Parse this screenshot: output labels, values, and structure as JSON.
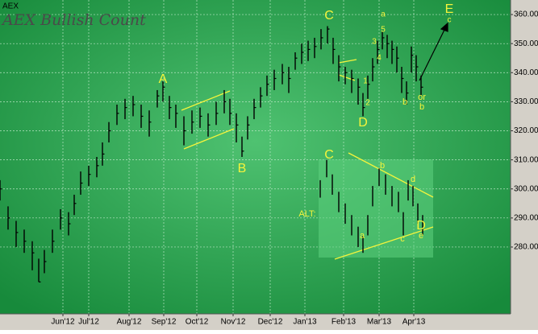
{
  "chart_data": {
    "type": "ohlc",
    "title": "AEX",
    "subtitle": "AEX Bullish Count",
    "x": [
      0,
      5,
      10,
      15,
      20,
      24,
      27.5,
      32.5,
      37.5,
      42.5,
      46,
      50,
      55,
      60,
      63.5,
      67.5,
      72.5,
      77.5,
      82.5,
      87.5,
      92.5,
      97.5,
      101,
      105,
      109,
      114,
      119,
      124,
      129,
      134,
      139,
      142.5,
      146.5,
      150,
      153.5,
      157.5,
      161.5,
      165.5,
      170,
      175,
      179,
      183,
      187,
      191,
      195,
      199,
      203,
      206.5,
      210,
      214,
      218,
      222,
      225,
      228,
      231,
      234,
      237,
      240,
      243,
      246,
      249,
      252,
      255,
      258,
      261
    ],
    "high": [
      303,
      294,
      289,
      286,
      282,
      276,
      279,
      286,
      293,
      292,
      298,
      306,
      308,
      311,
      316,
      323,
      329,
      331,
      332,
      329,
      327,
      334,
      337,
      332,
      329,
      325,
      327,
      328,
      326,
      330,
      334,
      331,
      326,
      318,
      325,
      331,
      335,
      339,
      341,
      343,
      342,
      347,
      350,
      351,
      352,
      355,
      356,
      352,
      346,
      342,
      341,
      338,
      333,
      339,
      345,
      351,
      354,
      353,
      351,
      349,
      342,
      337,
      349,
      346,
      339
    ],
    "low": [
      296,
      286,
      280,
      278,
      272,
      268,
      271,
      278,
      286,
      284,
      291,
      298,
      301,
      304,
      308,
      316,
      322,
      324,
      325,
      321,
      318,
      328,
      330,
      324,
      321,
      315,
      319,
      321,
      318,
      322,
      326,
      322,
      316,
      311,
      317,
      324,
      328,
      332,
      334,
      336,
      333,
      341,
      343,
      344,
      345,
      348,
      350,
      343,
      337,
      336,
      333,
      329,
      325,
      331,
      337,
      343,
      348,
      345,
      343,
      340,
      333,
      329,
      340,
      337,
      332
    ],
    "close": [
      300,
      290,
      285,
      282,
      278,
      268,
      275,
      282,
      290,
      288,
      295,
      302,
      305,
      308,
      312,
      320,
      326,
      328,
      329,
      325,
      323,
      332,
      335,
      328,
      326,
      320,
      323,
      325,
      322,
      326,
      330,
      326,
      322,
      313,
      322,
      328,
      332,
      336,
      338,
      340,
      338,
      345,
      347,
      348,
      349,
      352,
      355,
      348,
      342,
      340,
      338,
      335,
      328,
      336,
      342,
      348,
      352,
      350,
      348,
      345,
      338,
      333,
      346,
      342,
      335
    ],
    "alt": {
      "x": [
        198.5,
        202.5,
        206,
        210,
        214,
        218,
        222,
        225,
        228,
        231,
        235,
        239,
        243,
        247,
        250,
        253,
        256,
        259,
        262
      ],
      "high": [
        303,
        310,
        305,
        299,
        295,
        291,
        287,
        284,
        291,
        301,
        307,
        305,
        301,
        299,
        292,
        303,
        301,
        295,
        291
      ],
      "low": [
        297,
        304,
        298,
        292,
        288,
        284,
        280,
        278,
        284,
        294,
        301,
        298,
        294,
        292,
        284,
        296,
        294,
        288,
        284
      ]
    },
    "color": "#000000",
    "xlim": [
      0,
      316.5
    ],
    "xticks": [
      {
        "value": 39,
        "label": "Jun'12"
      },
      {
        "value": 55,
        "label": "Jul'12"
      },
      {
        "value": 80,
        "label": "Aug'12"
      },
      {
        "value": 101.5,
        "label": "Sep'12"
      },
      {
        "value": 122,
        "label": "Oct'12"
      },
      {
        "value": 144.5,
        "label": "Nov'12"
      },
      {
        "value": 167.5,
        "label": "Dec'12"
      },
      {
        "value": 189,
        "label": "Jan'13"
      },
      {
        "value": 213,
        "label": "Feb'13"
      },
      {
        "value": 235,
        "label": "Mar'13"
      },
      {
        "value": 256.5,
        "label": "Apr'13"
      }
    ],
    "ylim": [
      257,
      365
    ],
    "yticks": [
      {
        "value": 280,
        "label": "280.00"
      },
      {
        "value": 290,
        "label": "290.00"
      },
      {
        "value": 300,
        "label": "300.00"
      },
      {
        "value": 310,
        "label": "310.00"
      },
      {
        "value": 320,
        "label": "320.00"
      },
      {
        "value": 330,
        "label": "330.00"
      },
      {
        "value": 340,
        "label": "340.00"
      },
      {
        "value": 350,
        "label": "350.00"
      },
      {
        "value": 360,
        "label": "360.00"
      }
    ],
    "grid": true,
    "annotations": [
      "A",
      "B",
      "C",
      "D",
      "E",
      "c",
      "a",
      "5",
      "3",
      "4",
      "1",
      "2",
      "b",
      "or",
      "b",
      "C",
      "b",
      "d",
      "ALT:",
      "a",
      "c",
      "e",
      "D"
    ]
  }
}
